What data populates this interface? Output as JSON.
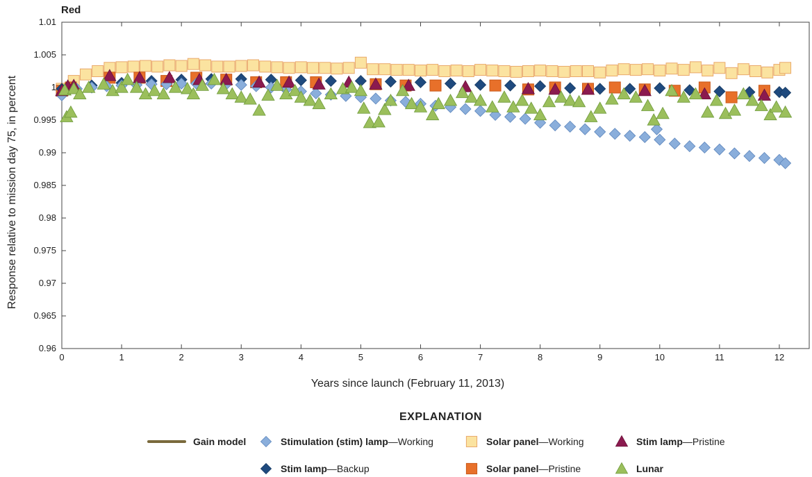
{
  "chart_data": {
    "type": "scatter",
    "title": "Red",
    "xlabel": "Years since launch (February 11, 2013)",
    "ylabel": "Response relative to mission day 75, in percent",
    "xlim": [
      0,
      12.5
    ],
    "ylim": [
      0.96,
      1.01
    ],
    "xticks": [
      "0",
      "1",
      "2",
      "3",
      "4",
      "5",
      "6",
      "7",
      "8",
      "9",
      "10",
      "11",
      "12"
    ],
    "yticks": [
      "0.96",
      "0.965",
      "0.97",
      "0.975",
      "0.98",
      "0.985",
      "0.99",
      "0.995",
      "1",
      "1.005",
      "1.01"
    ],
    "grid": false,
    "legend_title": "EXPLANATION",
    "legend_placement": "bottom",
    "series": [
      {
        "name": "Gain model",
        "name_bold": "Gain model",
        "name_rest": "",
        "marker": "line",
        "color": "#7a6a3c",
        "x": [],
        "y": []
      },
      {
        "name": "Solar panel—Working",
        "name_bold": "Solar panel",
        "name_rest": "—Working",
        "marker": "square",
        "color": "#fbe3a0",
        "stroke": "#e9a86a",
        "x": [
          0,
          0.2,
          0.4,
          0.6,
          0.8,
          1,
          1.2,
          1.4,
          1.6,
          1.8,
          2,
          2.2,
          2.4,
          2.6,
          2.8,
          3,
          3.2,
          3.4,
          3.6,
          3.8,
          4,
          4.2,
          4.4,
          4.6,
          4.8,
          5,
          5.2,
          5.4,
          5.6,
          5.8,
          6,
          6.2,
          6.4,
          6.6,
          6.8,
          7,
          7.2,
          7.4,
          7.6,
          7.8,
          8,
          8.2,
          8.4,
          8.6,
          8.8,
          9,
          9.2,
          9.4,
          9.6,
          9.8,
          10,
          10.2,
          10.4,
          10.6,
          10.8,
          11,
          11.2,
          11.4,
          11.6,
          11.8,
          12,
          12.1
        ],
        "y": [
          0.9998,
          1.001,
          1.002,
          1.0025,
          1.003,
          1.0031,
          1.0032,
          1.0033,
          1.0032,
          1.0034,
          1.0033,
          1.0036,
          1.0034,
          1.0032,
          1.0032,
          1.0033,
          1.0034,
          1.0032,
          1.0031,
          1.003,
          1.0031,
          1.003,
          1.003,
          1.0029,
          1.003,
          1.0038,
          1.0028,
          1.0028,
          1.0027,
          1.0027,
          1.0026,
          1.0027,
          1.0025,
          1.0026,
          1.0025,
          1.0027,
          1.0026,
          1.0025,
          1.0024,
          1.0025,
          1.0026,
          1.0025,
          1.0024,
          1.0025,
          1.0025,
          1.0023,
          1.0026,
          1.0028,
          1.0027,
          1.0028,
          1.0026,
          1.0029,
          1.0027,
          1.0031,
          1.0026,
          1.003,
          1.0022,
          1.0028,
          1.0025,
          1.0023,
          1.0027,
          1.003
        ]
      },
      {
        "name": "Solar panel—Pristine",
        "name_bold": "Solar panel",
        "name_rest": "—Pristine",
        "marker": "square",
        "color": "#e8702a",
        "stroke": "#c95a1a",
        "x": [
          0,
          0.15,
          0.8,
          1.3,
          1.75,
          2.25,
          2.75,
          3.25,
          3.75,
          4.25,
          5.25,
          5.75,
          6.25,
          7.25,
          7.8,
          8.25,
          8.8,
          9.25,
          9.75,
          10.25,
          10.75,
          11.2,
          11.75
        ],
        "y": [
          0.9995,
          1.0,
          1.0015,
          1.0015,
          1.001,
          1.0015,
          1.0012,
          1.0008,
          1.0008,
          1.0008,
          1.0005,
          1.0003,
          1.0003,
          1.0003,
          0.9997,
          1.0,
          0.9998,
          1.0,
          0.9997,
          0.9995,
          1.0,
          0.9985,
          0.9995
        ]
      },
      {
        "name": "Stim lamp—Backup",
        "name_bold": "Stim lamp",
        "name_rest": "—Backup",
        "marker": "diamond",
        "color": "#1f4a7e",
        "stroke": "#173a63",
        "x": [
          0,
          0.5,
          1,
          1.5,
          2,
          2.5,
          3,
          3.5,
          4,
          4.5,
          5,
          5.5,
          6,
          6.5,
          7,
          7.5,
          8,
          8.5,
          9,
          9.5,
          10,
          10.5,
          11,
          11.5,
          12,
          12.1
        ],
        "y": [
          0.9998,
          1.0003,
          1.0007,
          1.001,
          1.0012,
          1.0013,
          1.0013,
          1.0012,
          1.0011,
          1.001,
          1.001,
          1.0009,
          1.0008,
          1.0006,
          1.0004,
          1.0003,
          1.0002,
          0.9999,
          0.9998,
          0.9998,
          0.9999,
          0.9996,
          0.9994,
          0.9993,
          0.9993,
          0.9992
        ]
      },
      {
        "name": "Stimulation (stim) lamp—Working",
        "name_bold": "Stimulation (stim) lamp",
        "name_rest": "—Working",
        "marker": "diamond",
        "color": "#8aaedb",
        "stroke": "#5d86bd",
        "x": [
          0,
          0.25,
          0.5,
          0.75,
          1,
          1.25,
          1.5,
          1.75,
          2,
          2.25,
          2.5,
          2.75,
          3,
          3.25,
          3.5,
          3.75,
          4,
          4.25,
          4.5,
          4.75,
          5,
          5.25,
          5.5,
          5.75,
          6,
          6.25,
          6.5,
          6.75,
          7,
          7.25,
          7.5,
          7.75,
          8,
          8.25,
          8.5,
          8.75,
          9,
          9.25,
          9.5,
          9.75,
          9.95,
          10,
          10.25,
          10.5,
          10.75,
          11,
          11.25,
          11.5,
          11.75,
          12,
          12.1
        ],
        "y": [
          0.9988,
          0.9998,
          1.0,
          1.0002,
          1.0003,
          1.0004,
          1.0005,
          1.0005,
          1.0006,
          1.0006,
          1.0006,
          1.0005,
          1.0004,
          1.0002,
          1.0,
          0.9997,
          0.9994,
          0.9991,
          0.9989,
          0.9987,
          0.9985,
          0.9983,
          0.998,
          0.9978,
          0.9975,
          0.9972,
          0.997,
          0.9967,
          0.9964,
          0.9958,
          0.9955,
          0.9952,
          0.9946,
          0.9942,
          0.994,
          0.9936,
          0.9932,
          0.9929,
          0.9926,
          0.9924,
          0.9936,
          0.992,
          0.9914,
          0.991,
          0.9908,
          0.9905,
          0.9899,
          0.9895,
          0.9892,
          0.9889,
          0.9884
        ]
      },
      {
        "name": "Stim lamp—Pristine",
        "name_bold": "Stim lamp",
        "name_rest": "—Pristine",
        "marker": "triangle",
        "color": "#8b1a4f",
        "stroke": "#6b1038",
        "x": [
          0,
          0.1,
          0.2,
          0.8,
          1.3,
          1.8,
          2.3,
          2.75,
          3.3,
          3.8,
          4.3,
          4.8,
          5.25,
          5.8,
          6.75,
          7.8,
          8.25,
          8.8,
          9.75,
          10.75,
          11.75
        ],
        "y": [
          0.9995,
          1.0002,
          1.0003,
          1.0018,
          1.0015,
          1.0015,
          1.0012,
          1.0012,
          1.0008,
          1.0008,
          1.0005,
          1.0008,
          1.0005,
          1.0003,
          1.0001,
          0.9998,
          0.9997,
          0.9997,
          0.9995,
          0.999,
          0.9988
        ]
      },
      {
        "name": "Lunar",
        "name_bold": "Lunar",
        "name_rest": "",
        "marker": "triangle",
        "color": "#9bbf5c",
        "stroke": "#6e9a3a",
        "x": [
          0.05,
          0.08,
          0.15,
          0.2,
          0.3,
          0.45,
          0.7,
          0.85,
          1.0,
          1.1,
          1.25,
          1.4,
          1.55,
          1.7,
          1.9,
          2.1,
          2.2,
          2.35,
          2.55,
          2.7,
          2.85,
          3.0,
          3.15,
          3.3,
          3.45,
          3.6,
          3.75,
          3.9,
          4.0,
          4.15,
          4.3,
          4.5,
          4.7,
          4.85,
          5.0,
          5.05,
          5.15,
          5.3,
          5.4,
          5.5,
          5.7,
          5.85,
          6.0,
          6.2,
          6.3,
          6.5,
          6.7,
          6.85,
          7.0,
          7.2,
          7.4,
          7.55,
          7.7,
          7.85,
          8.0,
          8.15,
          8.35,
          8.5,
          8.65,
          8.85,
          9.0,
          9.2,
          9.4,
          9.6,
          9.8,
          9.9,
          10.05,
          10.2,
          10.4,
          10.6,
          10.8,
          10.95,
          11.1,
          11.25,
          11.4,
          11.55,
          11.7,
          11.85,
          11.95,
          12.1
        ],
        "y": [
          0.9996,
          0.9955,
          0.9962,
          0.9998,
          0.999,
          1.0,
          1.0005,
          0.9995,
          1.0,
          1.0012,
          1.0,
          0.999,
          0.9995,
          0.999,
          1.0,
          0.9998,
          0.999,
          1.0003,
          1.0012,
          0.9998,
          0.999,
          0.9985,
          0.9982,
          0.9965,
          0.9988,
          1.0003,
          0.999,
          0.9995,
          0.9985,
          0.998,
          0.9975,
          0.999,
          0.9998,
          1.0,
          0.9995,
          0.9968,
          0.9946,
          0.9947,
          0.9966,
          0.998,
          0.9995,
          0.9975,
          0.997,
          0.9958,
          0.9975,
          0.998,
          0.9992,
          0.9985,
          0.998,
          0.997,
          0.9985,
          0.997,
          0.998,
          0.9968,
          0.9958,
          0.9978,
          0.9985,
          0.998,
          0.9978,
          0.9955,
          0.9968,
          0.9982,
          0.999,
          0.9985,
          0.9972,
          0.995,
          0.996,
          0.9995,
          0.9985,
          0.999,
          0.9962,
          0.998,
          0.996,
          0.9965,
          0.999,
          0.998,
          0.9972,
          0.9958,
          0.997,
          0.9962
        ]
      }
    ]
  }
}
